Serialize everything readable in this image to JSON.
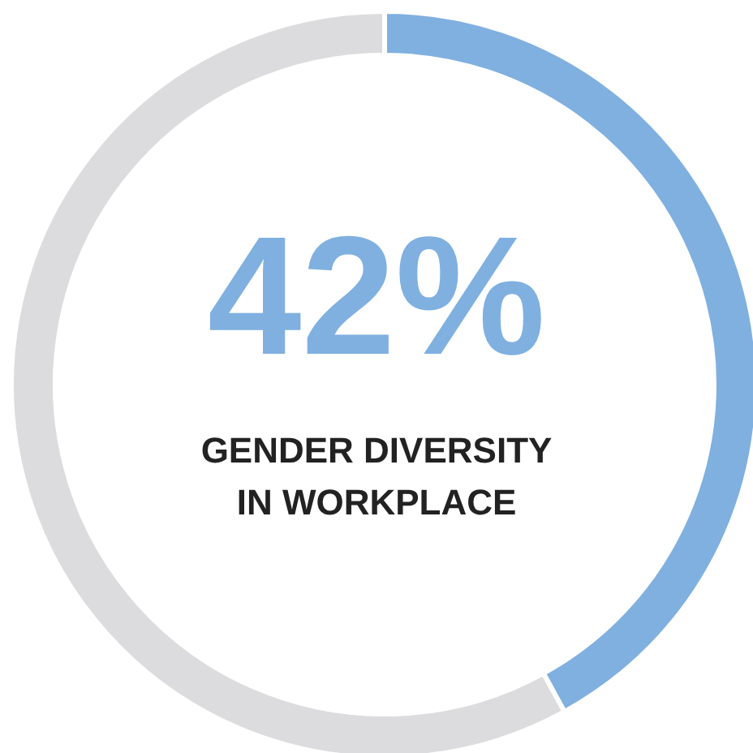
{
  "chart_data": {
    "type": "donut",
    "title": "GENDER DIVERSITY IN WORKPLACE",
    "categories": [
      null,
      null
    ],
    "values": [
      42,
      58
    ],
    "colors": [
      "#7fb0e0",
      "#dcdcde"
    ],
    "value_labels": [
      "42%",
      null
    ],
    "legend": false
  }
}
